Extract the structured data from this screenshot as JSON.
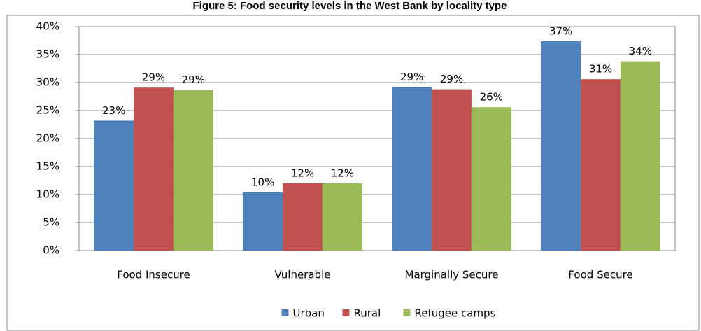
{
  "chart_data": {
    "type": "bar",
    "title": "Figure 5: Food security levels in the West Bank by locality type",
    "categories": [
      "Food Insecure",
      "Vulnerable",
      "Marginally Secure",
      "Food Secure"
    ],
    "series": [
      {
        "name": "Urban",
        "color": "#4f81bd",
        "values": [
          23.2,
          10.4,
          29.2,
          37.4
        ],
        "value_labels": [
          "23%",
          "10%",
          "29%",
          "37%"
        ]
      },
      {
        "name": "Rural",
        "color": "#c0504d",
        "values": [
          29.1,
          12.0,
          28.8,
          30.6
        ],
        "value_labels": [
          "29%",
          "12%",
          "29%",
          "31%"
        ]
      },
      {
        "name": "Refugee camps",
        "color": "#9bbb59",
        "values": [
          28.7,
          12.0,
          25.6,
          33.8
        ],
        "value_labels": [
          "29%",
          "12%",
          "26%",
          "34%"
        ]
      }
    ],
    "ylim": [
      0,
      40
    ],
    "yticks": [
      {
        "value": 0,
        "label": "0%"
      },
      {
        "value": 5,
        "label": "5%"
      },
      {
        "value": 10,
        "label": "10%"
      },
      {
        "value": 15,
        "label": "15%"
      },
      {
        "value": 20,
        "label": "20%"
      },
      {
        "value": 25,
        "label": "25%"
      },
      {
        "value": 30,
        "label": "30%"
      },
      {
        "value": 35,
        "label": "35%"
      },
      {
        "value": 40,
        "label": "40%"
      }
    ],
    "grid": true,
    "legend": "bottom"
  }
}
